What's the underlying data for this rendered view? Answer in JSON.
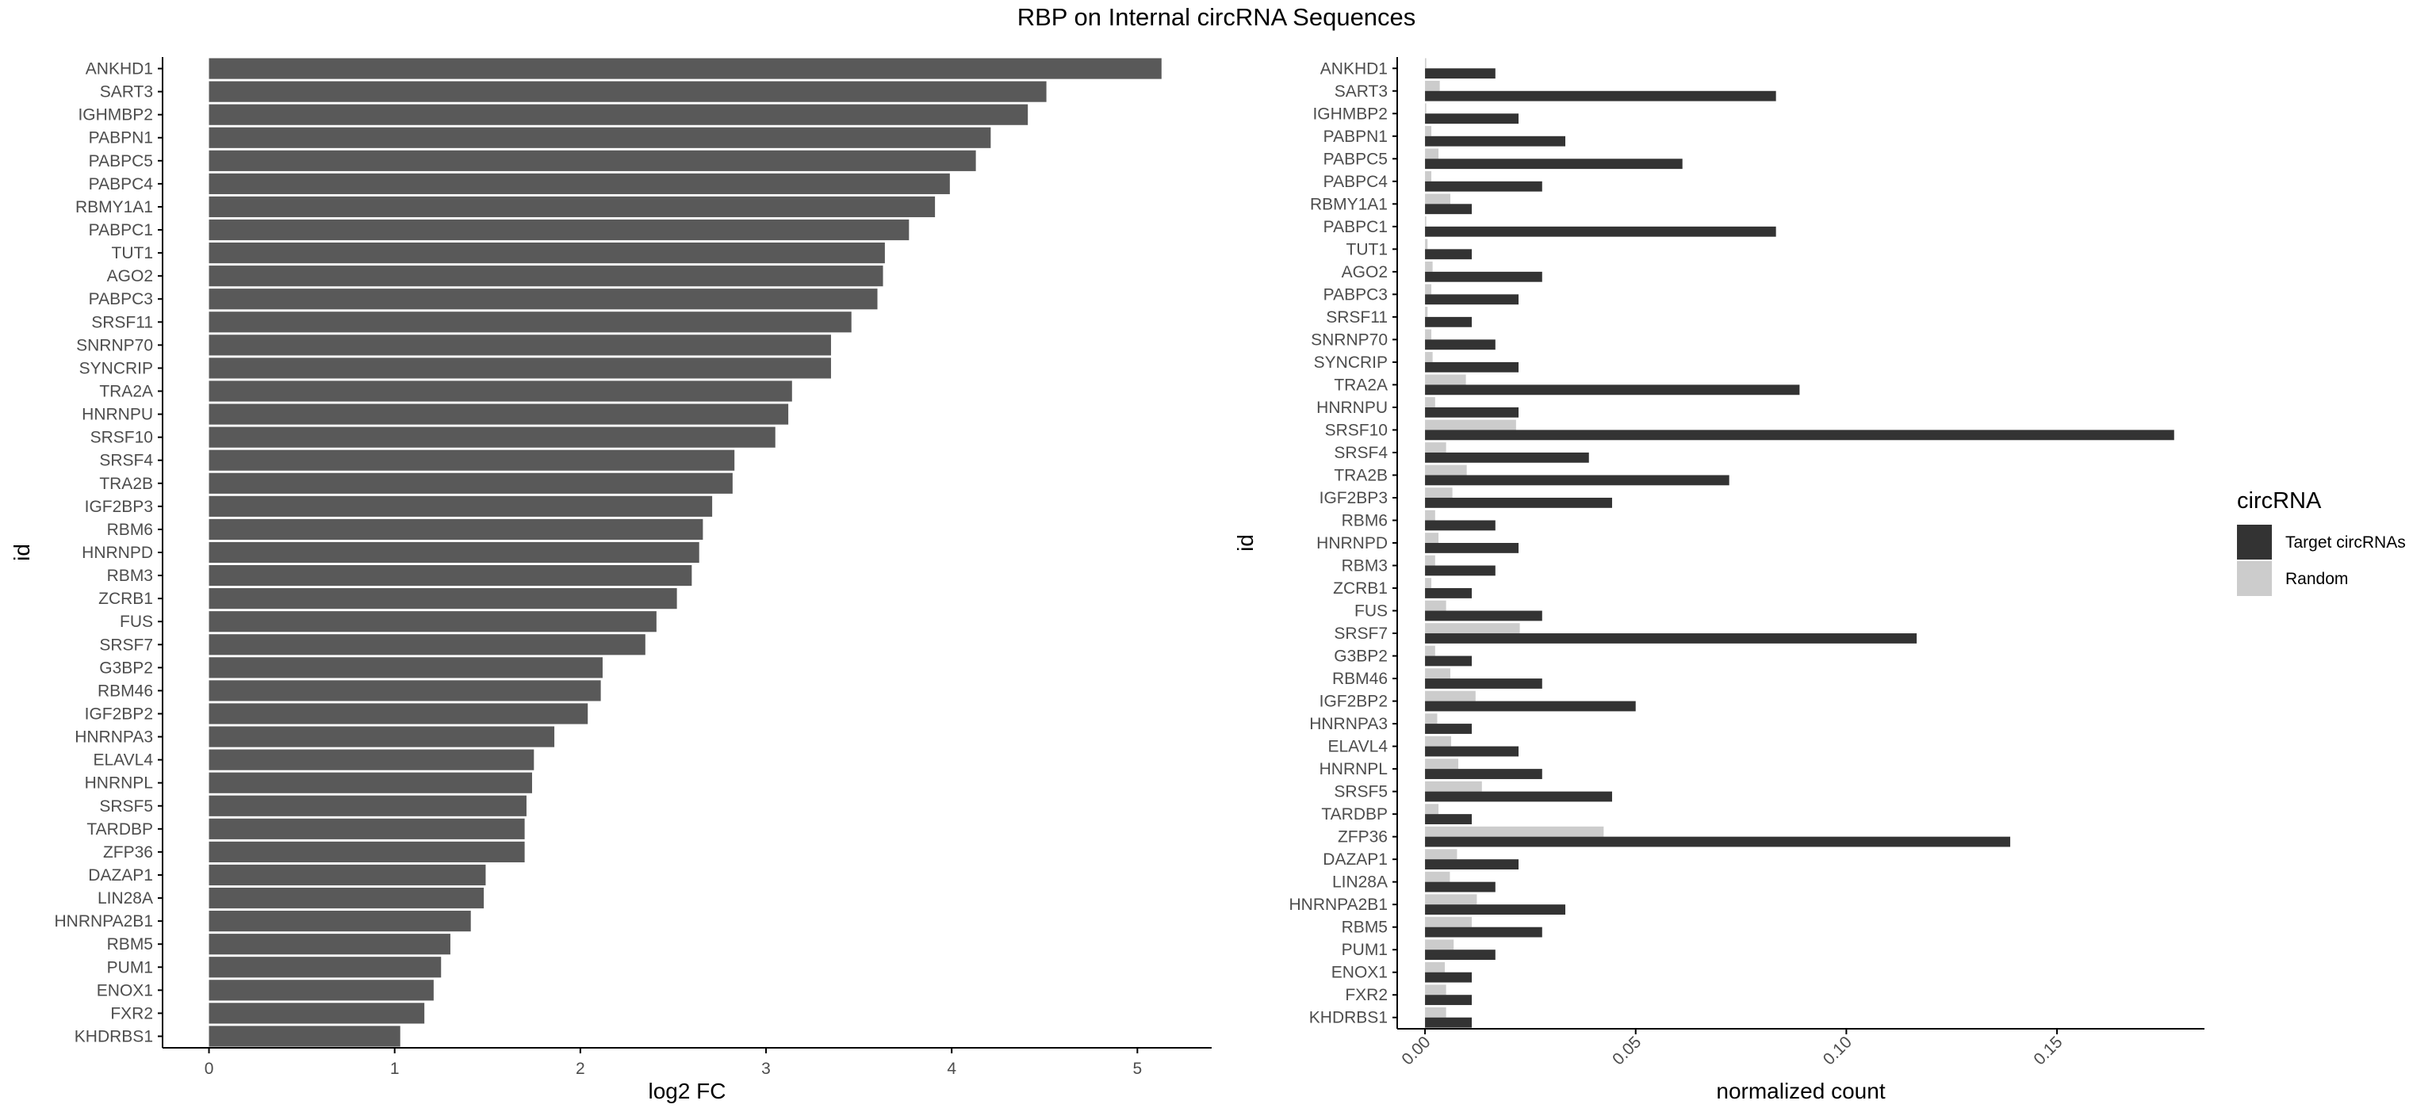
{
  "title": "RBP on Internal circRNA Sequences",
  "colors": {
    "bar_left": "#595959",
    "target": "#333333",
    "random": "#cccccc",
    "axis": "#000000",
    "tick_text": "#4d4d4d"
  },
  "chart_data": [
    {
      "type": "bar",
      "orientation": "horizontal",
      "xlabel": "log2 FC",
      "ylabel": "id",
      "xlim": [
        -0.25,
        5.4
      ],
      "xticks": [
        0,
        1,
        2,
        3,
        4,
        5
      ],
      "grid": false,
      "categories": [
        "ANKHD1",
        "SART3",
        "IGHMBP2",
        "PABPN1",
        "PABPC5",
        "PABPC4",
        "RBMY1A1",
        "PABPC1",
        "TUT1",
        "AGO2",
        "PABPC3",
        "SRSF11",
        "SNRNP70",
        "SYNCRIP",
        "TRA2A",
        "HNRNPU",
        "SRSF10",
        "SRSF4",
        "TRA2B",
        "IGF2BP3",
        "RBM6",
        "HNRNPD",
        "RBM3",
        "ZCRB1",
        "FUS",
        "SRSF7",
        "G3BP2",
        "RBM46",
        "IGF2BP2",
        "HNRNPA3",
        "ELAVL4",
        "HNRNPL",
        "SRSF5",
        "TARDBP",
        "ZFP36",
        "DAZAP1",
        "LIN28A",
        "HNRNPA2B1",
        "RBM5",
        "PUM1",
        "ENOX1",
        "FXR2",
        "KHDRBS1"
      ],
      "values": [
        5.13,
        4.51,
        4.41,
        4.21,
        4.13,
        3.99,
        3.91,
        3.77,
        3.64,
        3.63,
        3.6,
        3.46,
        3.35,
        3.35,
        3.14,
        3.12,
        3.05,
        2.83,
        2.82,
        2.71,
        2.66,
        2.64,
        2.6,
        2.52,
        2.41,
        2.35,
        2.12,
        2.11,
        2.04,
        1.86,
        1.75,
        1.74,
        1.71,
        1.7,
        1.7,
        1.49,
        1.48,
        1.41,
        1.3,
        1.25,
        1.21,
        1.16,
        1.03
      ]
    },
    {
      "type": "bar",
      "orientation": "horizontal",
      "position": "dodge",
      "xlabel": "normalized count",
      "ylabel": "id",
      "xlim": [
        -0.0066,
        0.185
      ],
      "xticks": [
        0,
        0.05,
        0.1,
        0.15
      ],
      "xtick_labels": [
        "0.00",
        "0.05",
        "0.10",
        "0.15"
      ],
      "xtick_rotation": -45,
      "grid": false,
      "legend_position": "right",
      "legend_title": "circRNA",
      "categories": [
        "ANKHD1",
        "SART3",
        "IGHMBP2",
        "PABPN1",
        "PABPC5",
        "PABPC4",
        "RBMY1A1",
        "PABPC1",
        "TUT1",
        "AGO2",
        "PABPC3",
        "SRSF11",
        "SNRNP70",
        "SYNCRIP",
        "TRA2A",
        "HNRNPU",
        "SRSF10",
        "SRSF4",
        "TRA2B",
        "IGF2BP3",
        "RBM6",
        "HNRNPD",
        "RBM3",
        "ZCRB1",
        "FUS",
        "SRSF7",
        "G3BP2",
        "RBM46",
        "IGF2BP2",
        "HNRNPA3",
        "ELAVL4",
        "HNRNPL",
        "SRSF5",
        "TARDBP",
        "ZFP36",
        "DAZAP1",
        "LIN28A",
        "HNRNPA2B1",
        "RBM5",
        "PUM1",
        "ENOX1",
        "FXR2",
        "KHDRBS1"
      ],
      "series": [
        {
          "name": "Target circRNAs",
          "color": "#333333",
          "values": [
            0.0167,
            0.0833,
            0.0222,
            0.0333,
            0.0611,
            0.0278,
            0.0111,
            0.0833,
            0.0111,
            0.0278,
            0.0222,
            0.0111,
            0.0167,
            0.0222,
            0.0889,
            0.0222,
            0.1778,
            0.0389,
            0.0722,
            0.0444,
            0.0167,
            0.0222,
            0.0167,
            0.0111,
            0.0278,
            0.1167,
            0.0111,
            0.0278,
            0.05,
            0.0111,
            0.0222,
            0.0278,
            0.0444,
            0.0111,
            0.1389,
            0.0222,
            0.0167,
            0.0333,
            0.0278,
            0.0167,
            0.0111,
            0.0111,
            0.0111
          ]
        },
        {
          "name": "Random",
          "color": "#cccccc",
          "values": [
            0.0003,
            0.0035,
            0.0003,
            0.0015,
            0.0032,
            0.0015,
            0.006,
            0.0003,
            0.0006,
            0.0018,
            0.0015,
            0.0006,
            0.0015,
            0.0018,
            0.0097,
            0.0024,
            0.0216,
            0.005,
            0.0099,
            0.0065,
            0.0024,
            0.0032,
            0.0024,
            0.0015,
            0.005,
            0.0225,
            0.0024,
            0.006,
            0.012,
            0.0029,
            0.0062,
            0.0079,
            0.0135,
            0.0032,
            0.0424,
            0.0076,
            0.0059,
            0.0123,
            0.0111,
            0.0068,
            0.0047,
            0.005,
            0.005
          ]
        }
      ]
    }
  ]
}
